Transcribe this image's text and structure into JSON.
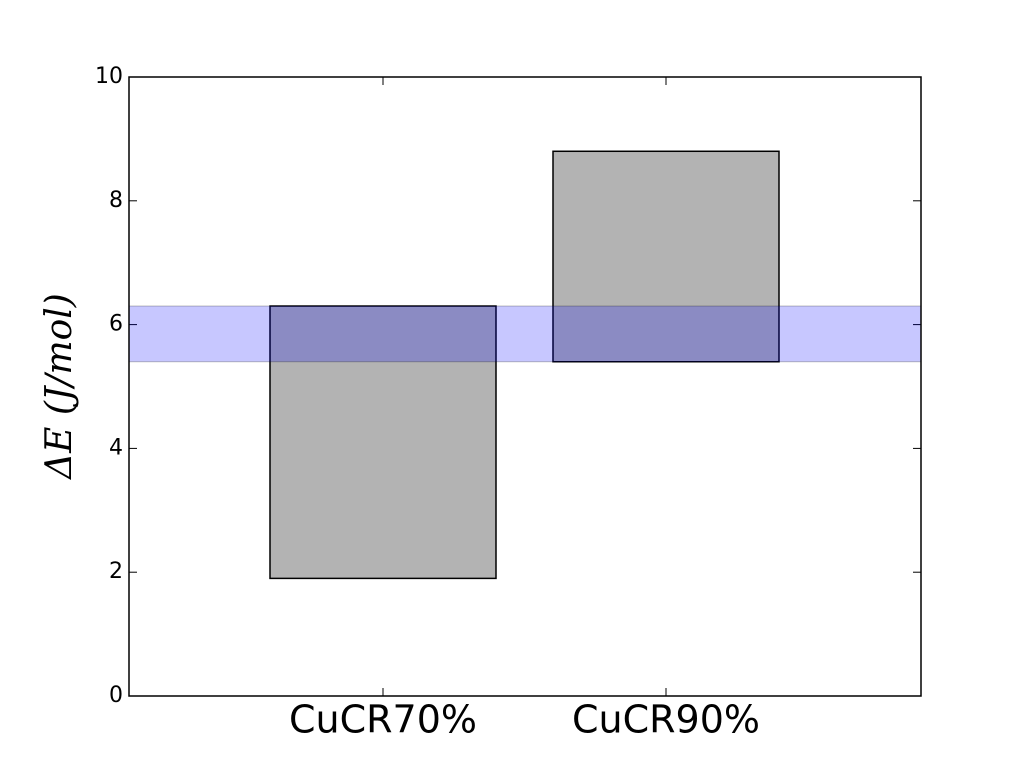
{
  "chart_data": {
    "type": "floating-bar",
    "y_label": "ΔE (J/mol)",
    "categories": [
      "CuCR70%",
      "CuCR90%"
    ],
    "low": [
      1.9,
      5.4
    ],
    "high": [
      6.3,
      8.8
    ],
    "color": "#b3b3b3",
    "band": {
      "low": 5.4,
      "high": 6.3,
      "color": "#0000ff"
    },
    "ylim": [
      0,
      10
    ],
    "yticks": [
      0,
      2,
      4,
      6,
      8,
      10
    ]
  }
}
